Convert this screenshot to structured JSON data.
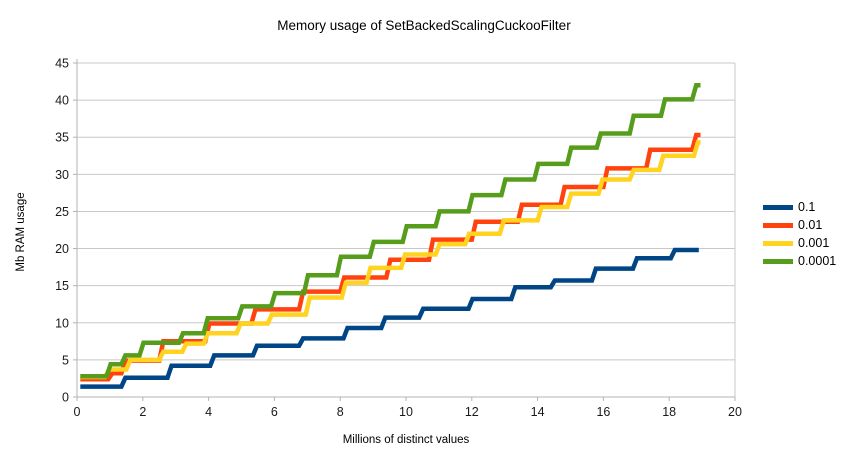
{
  "title": "Memory usage of SetBackedScalingCuckooFilter",
  "legend": {
    "position": "right",
    "items": [
      {
        "label": "0.1",
        "color": "#004586"
      },
      {
        "label": "0.01",
        "color": "#FF420E"
      },
      {
        "label": "0.001",
        "color": "#FFD320"
      },
      {
        "label": "0.0001",
        "color": "#579D1C"
      }
    ]
  },
  "axes": {
    "x": {
      "label": "Millions of distinct values",
      "min": 0,
      "max": 20,
      "tick_labels": [
        "0",
        "2",
        "4",
        "6",
        "8",
        "10",
        "12",
        "14",
        "16",
        "18",
        "20"
      ]
    },
    "y": {
      "label": "Mb RAM usage",
      "min": 0,
      "max": 45,
      "tick_labels": [
        "0",
        "5",
        "10",
        "15",
        "20",
        "25",
        "30",
        "35",
        "40",
        "45"
      ]
    }
  },
  "style_colors": {
    "gridline": "#c8c8c8",
    "axis_line": "#b3b3b3",
    "tick_text": "#1a1a1a"
  },
  "chart_data": {
    "type": "line",
    "subtype": "step",
    "title": "Memory usage of SetBackedScalingCuckooFilter",
    "xlabel": "Millions of distinct values",
    "ylabel": "Mb RAM usage",
    "xlim": [
      0,
      20
    ],
    "ylim": [
      0,
      45
    ],
    "x_tick_step": 2,
    "y_tick_step": 5,
    "grid": true,
    "legend_position": "right",
    "point_format": [
      "millions_of_distinct_values",
      "mb_ram_usage"
    ],
    "series": [
      {
        "name": "0.1",
        "color": "#004586",
        "points": [
          [
            0.1,
            1.4
          ],
          [
            1.35,
            2.6
          ],
          [
            2.75,
            4.2
          ],
          [
            4.05,
            5.6
          ],
          [
            5.35,
            6.9
          ],
          [
            6.75,
            7.9
          ],
          [
            8.1,
            9.3
          ],
          [
            9.25,
            10.7
          ],
          [
            10.4,
            11.9
          ],
          [
            11.9,
            13.2
          ],
          [
            13.2,
            14.8
          ],
          [
            14.4,
            15.7
          ],
          [
            15.65,
            17.3
          ],
          [
            16.9,
            18.7
          ],
          [
            18.05,
            19.8
          ],
          [
            18.9,
            19.8
          ]
        ]
      },
      {
        "name": "0.01",
        "color": "#FF420E",
        "points": [
          [
            0.1,
            2.4
          ],
          [
            0.95,
            3.2
          ],
          [
            1.35,
            4.9
          ],
          [
            2.5,
            7.5
          ],
          [
            3.9,
            9.9
          ],
          [
            5.3,
            11.8
          ],
          [
            6.75,
            14.2
          ],
          [
            8.0,
            16.1
          ],
          [
            9.4,
            18.5
          ],
          [
            10.7,
            21.2
          ],
          [
            12.0,
            23.6
          ],
          [
            13.4,
            25.9
          ],
          [
            14.7,
            28.3
          ],
          [
            16.0,
            30.8
          ],
          [
            17.3,
            33.3
          ],
          [
            18.7,
            35.3
          ],
          [
            18.95,
            35.3
          ]
        ]
      },
      {
        "name": "0.001",
        "color": "#FFD320",
        "points": [
          [
            0.1,
            2.7
          ],
          [
            0.85,
            3.7
          ],
          [
            1.5,
            5.0
          ],
          [
            2.5,
            6.1
          ],
          [
            3.2,
            7.2
          ],
          [
            3.85,
            8.6
          ],
          [
            4.85,
            9.9
          ],
          [
            5.8,
            11.1
          ],
          [
            6.95,
            13.4
          ],
          [
            8.05,
            15.4
          ],
          [
            8.8,
            17.4
          ],
          [
            9.85,
            19.2
          ],
          [
            10.9,
            20.6
          ],
          [
            11.8,
            22.0
          ],
          [
            12.85,
            23.8
          ],
          [
            14.0,
            25.6
          ],
          [
            14.9,
            27.4
          ],
          [
            15.85,
            29.3
          ],
          [
            16.8,
            30.6
          ],
          [
            17.7,
            32.5
          ],
          [
            18.75,
            34.3
          ],
          [
            18.95,
            34.3
          ]
        ]
      },
      {
        "name": "0.0001",
        "color": "#579D1C",
        "points": [
          [
            0.1,
            2.8
          ],
          [
            0.9,
            4.4
          ],
          [
            1.35,
            5.6
          ],
          [
            1.9,
            7.3
          ],
          [
            3.1,
            8.6
          ],
          [
            3.85,
            10.6
          ],
          [
            4.9,
            12.2
          ],
          [
            5.9,
            14.0
          ],
          [
            6.9,
            16.4
          ],
          [
            7.9,
            18.9
          ],
          [
            8.9,
            20.9
          ],
          [
            9.9,
            23.0
          ],
          [
            10.9,
            25.0
          ],
          [
            11.9,
            27.2
          ],
          [
            12.9,
            29.3
          ],
          [
            13.9,
            31.4
          ],
          [
            14.9,
            33.6
          ],
          [
            15.8,
            35.5
          ],
          [
            16.8,
            37.9
          ],
          [
            17.75,
            40.1
          ],
          [
            18.7,
            42.0
          ],
          [
            18.95,
            42.0
          ]
        ]
      }
    ]
  }
}
